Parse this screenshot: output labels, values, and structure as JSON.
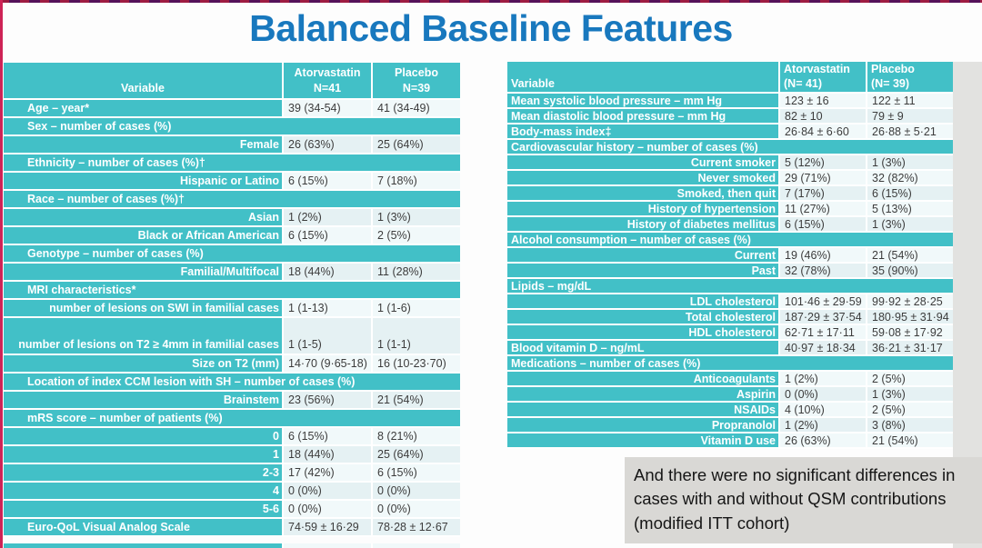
{
  "title": "Balanced Baseline Features",
  "caption": {
    "lines": [
      "And there were no significant differences in",
      "cases with and without QSM contributions",
      "(modified ITT cohort)"
    ]
  },
  "colors": {
    "teal": "#42c0c7",
    "title_blue": "#1878be",
    "caption_gray": "#d9d8d5",
    "left_edge_red": "#ce2356",
    "value_text": "#3c3c3c"
  },
  "left_table": {
    "headers": {
      "variable": "Variable",
      "col1": [
        "Atorvastatin",
        "N=41"
      ],
      "col2": [
        "Placebo",
        "N=39"
      ]
    },
    "rows": [
      {
        "type": "data",
        "align": "left",
        "label": "Age – year*",
        "v1": "39 (34-54)",
        "v2": "41 (34-49)"
      },
      {
        "type": "category",
        "label": "Sex – number of cases (%)"
      },
      {
        "type": "data",
        "align": "right",
        "label": "Female",
        "v1": "26 (63%)",
        "v2": "25 (64%)"
      },
      {
        "type": "category",
        "label": "Ethnicity – number of cases (%)†"
      },
      {
        "type": "data",
        "align": "right",
        "label": "Hispanic or Latino",
        "v1": "6 (15%)",
        "v2": "7 (18%)"
      },
      {
        "type": "category",
        "label": "Race – number of cases (%)†"
      },
      {
        "type": "data",
        "align": "right",
        "label": "Asian",
        "v1": "1 (2%)",
        "v2": "1 (3%)"
      },
      {
        "type": "data",
        "align": "right",
        "label": "Black or African American",
        "v1": "6 (15%)",
        "v2": "2 (5%)"
      },
      {
        "type": "category",
        "label": "Genotype – number of cases (%)"
      },
      {
        "type": "data",
        "align": "right",
        "label": "Familial/Multifocal",
        "v1": "18 (44%)",
        "v2": "11 (28%)"
      },
      {
        "type": "category",
        "label": "MRI characteristics*"
      },
      {
        "type": "data",
        "align": "right",
        "label": "number of lesions on SWI in familial cases",
        "v1": "1 (1-13)",
        "v2": "1 (1-6)"
      },
      {
        "type": "data",
        "align": "right",
        "tall": true,
        "label": "number of lesions on T2 ≥ 4mm in familial cases",
        "v1": "1 (1-5)",
        "v2": "1 (1-1)"
      },
      {
        "type": "data",
        "align": "right",
        "label": "Size on T2 (mm)",
        "v1": "14·70 (9·65-18)",
        "v2": "16 (10-23·70)"
      },
      {
        "type": "category",
        "label": "Location of index CCM lesion with SH – number of cases (%)"
      },
      {
        "type": "data",
        "align": "right",
        "label": "Brainstem",
        "v1": "23 (56%)",
        "v2": "21 (54%)"
      },
      {
        "type": "category",
        "label": "mRS score – number of patients (%)"
      },
      {
        "type": "data",
        "align": "right",
        "label": "0",
        "v1": "6 (15%)",
        "v2": "8 (21%)"
      },
      {
        "type": "data",
        "align": "right",
        "label": "1",
        "v1": "18 (44%)",
        "v2": "25 (64%)"
      },
      {
        "type": "data",
        "align": "right",
        "label": "2-3",
        "v1": "17 (42%)",
        "v2": "6 (15%)"
      },
      {
        "type": "data",
        "align": "right",
        "label": "4",
        "v1": "0 (0%)",
        "v2": "0 (0%)"
      },
      {
        "type": "data",
        "align": "right",
        "label": "5-6",
        "v1": "0 (0%)",
        "v2": "0 (0%)"
      },
      {
        "type": "data",
        "align": "left",
        "label": "Euro-QoL Visual Analog Scale",
        "v1": "74·59 ± 16·29",
        "v2": "78·28 ± 12·67"
      },
      {
        "type": "data",
        "align": "left",
        "partial": true,
        "label": "",
        "v1": "",
        "v2": ""
      }
    ]
  },
  "right_table": {
    "headers": {
      "variable": "Variable",
      "col1": [
        "Atorvastatin",
        "(N= 41)"
      ],
      "col2": [
        "Placebo",
        "(N= 39)"
      ]
    },
    "rows": [
      {
        "type": "data",
        "align": "left",
        "label": "Mean systolic blood pressure – mm Hg",
        "v1": "123 ± 16",
        "v2": "122 ± 11"
      },
      {
        "type": "data",
        "align": "left",
        "label": "Mean diastolic blood pressure – mm Hg",
        "v1": "82 ± 10",
        "v2": "79 ± 9"
      },
      {
        "type": "data",
        "align": "left",
        "label": "Body-mass index‡",
        "v1": "26·84 ± 6·60",
        "v2": "26·88 ± 5·21"
      },
      {
        "type": "category",
        "label": "Cardiovascular history – number of cases (%)"
      },
      {
        "type": "data",
        "align": "right",
        "label": "Current smoker",
        "v1": "5 (12%)",
        "v2": "1 (3%)"
      },
      {
        "type": "data",
        "align": "right",
        "label": "Never smoked",
        "v1": "29 (71%)",
        "v2": "32 (82%)"
      },
      {
        "type": "data",
        "align": "right",
        "label": "Smoked, then quit",
        "v1": "7 (17%)",
        "v2": "6 (15%)"
      },
      {
        "type": "data",
        "align": "right",
        "label": "History of hypertension",
        "v1": "11 (27%)",
        "v2": "5 (13%)"
      },
      {
        "type": "data",
        "align": "right",
        "label": "History of diabetes mellitus",
        "v1": "6 (15%)",
        "v2": "1 (3%)"
      },
      {
        "type": "category",
        "label": "Alcohol consumption – number of cases (%)"
      },
      {
        "type": "data",
        "align": "right",
        "label": "Current",
        "v1": "19 (46%)",
        "v2": "21 (54%)"
      },
      {
        "type": "data",
        "align": "right",
        "label": "Past",
        "v1": "32 (78%)",
        "v2": "35 (90%)"
      },
      {
        "type": "category",
        "label": "Lipids – mg/dL"
      },
      {
        "type": "data",
        "align": "right",
        "label": "LDL cholesterol",
        "v1": "101·46 ± 29·59",
        "v2": "99·92 ± 28·25"
      },
      {
        "type": "data",
        "align": "right",
        "label": "Total cholesterol",
        "v1": "187·29 ± 37·54",
        "v2": "180·95 ± 31·94"
      },
      {
        "type": "data",
        "align": "right",
        "label": "HDL cholesterol",
        "v1": "62·71 ± 17·11",
        "v2": "59·08 ± 17·92"
      },
      {
        "type": "data",
        "align": "left",
        "label": "Blood vitamin D – ng/mL",
        "v1": "40·97 ± 18·34",
        "v2": "36·21 ± 31·17"
      },
      {
        "type": "category",
        "label": "Medications – number of cases (%)"
      },
      {
        "type": "data",
        "align": "right",
        "label": "Anticoagulants",
        "v1": "1 (2%)",
        "v2": "2 (5%)"
      },
      {
        "type": "data",
        "align": "right",
        "label": "Aspirin",
        "v1": "0 (0%)",
        "v2": "1 (3%)"
      },
      {
        "type": "data",
        "align": "right",
        "label": "NSAIDs",
        "v1": "4 (10%)",
        "v2": "2 (5%)"
      },
      {
        "type": "data",
        "align": "right",
        "label": "Propranolol",
        "v1": "1 (2%)",
        "v2": "3 (8%)"
      },
      {
        "type": "data",
        "align": "right",
        "label": "Vitamin D use",
        "v1": "26 (63%)",
        "v2": "21 (54%)"
      }
    ]
  }
}
